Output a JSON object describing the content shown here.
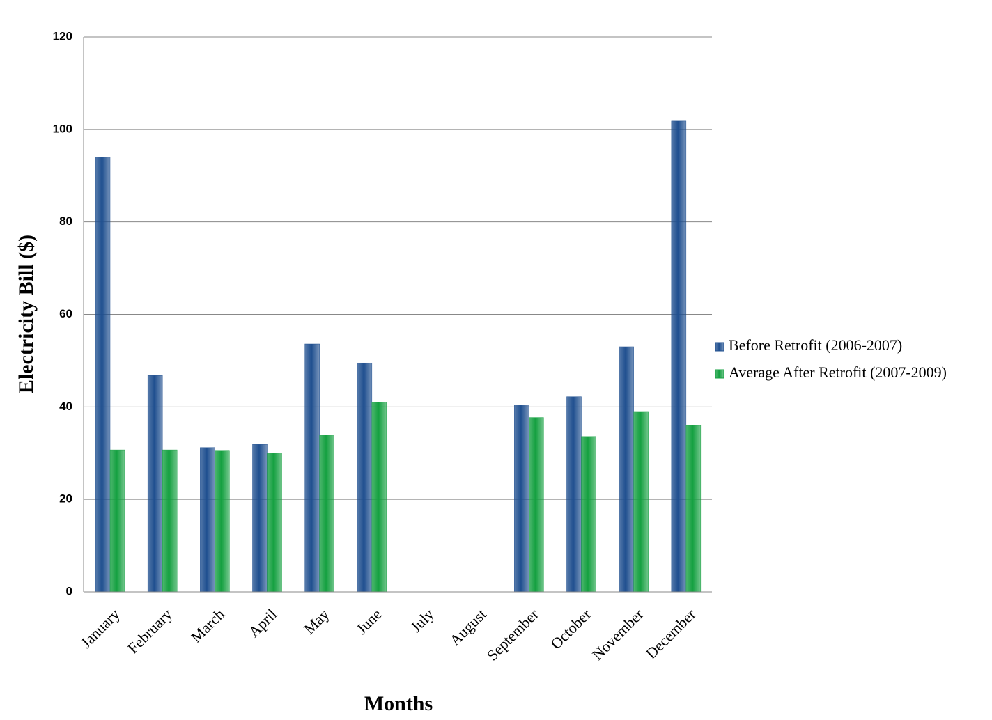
{
  "chart_data": {
    "type": "bar",
    "x_label": "Months",
    "y_label": "Electricity Bill ($)",
    "categories": [
      "January",
      "February",
      "March",
      "April",
      "May",
      "June",
      "July",
      "August",
      "September",
      "October",
      "November",
      "December"
    ],
    "series": [
      {
        "name": "Before Retrofit (2006-2007)",
        "color": "#1f4f8f",
        "values": [
          94,
          46.8,
          31.2,
          31.9,
          53.6,
          49.5,
          null,
          null,
          40.4,
          42.2,
          53,
          101.8
        ]
      },
      {
        "name": "Average After Retrofit (2007-2009)",
        "color": "#14a040",
        "values": [
          30.7,
          30.7,
          30.6,
          30,
          33.9,
          41,
          null,
          null,
          37.7,
          33.6,
          39,
          36
        ]
      }
    ],
    "ylim": [
      0,
      120
    ],
    "yticks": [
      0,
      20,
      40,
      60,
      80,
      100,
      120
    ],
    "grid": true,
    "legend": "right"
  }
}
